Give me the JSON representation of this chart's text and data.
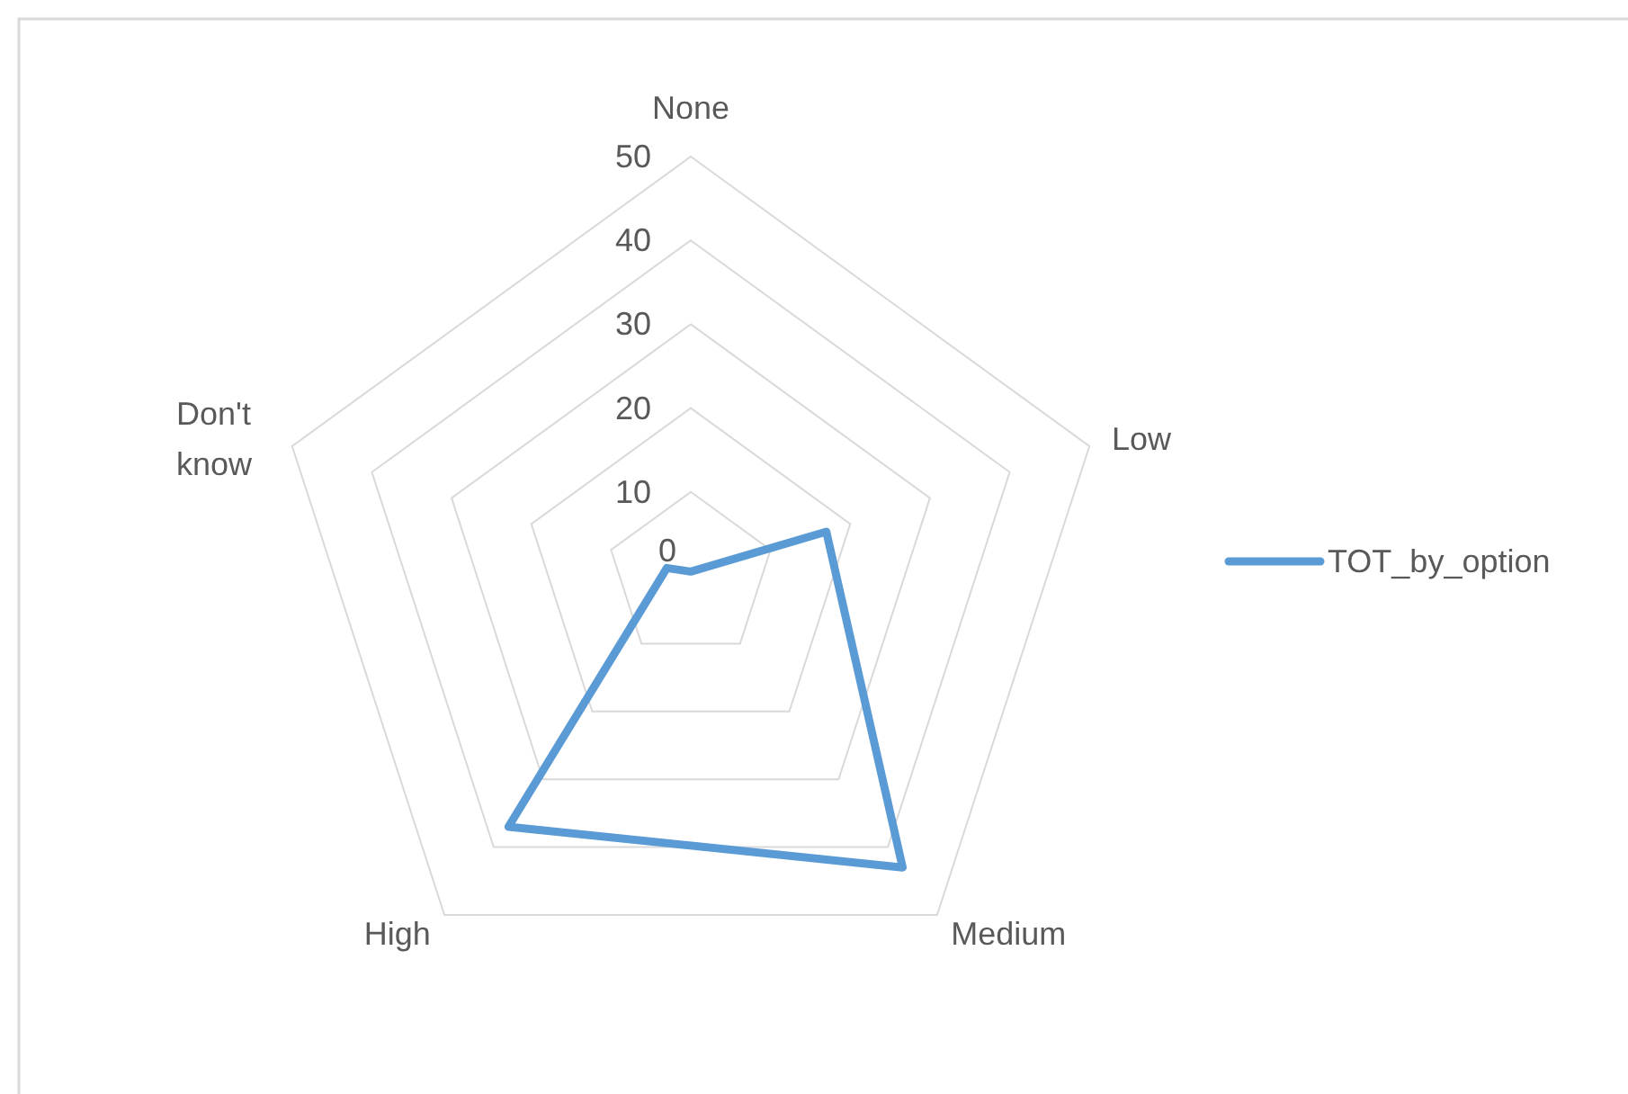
{
  "chart_data": {
    "type": "radar",
    "categories": [
      "None",
      "Low",
      "Medium",
      "High",
      "Don't know"
    ],
    "series": [
      {
        "name": "TOT_by_option",
        "color": "#5b9bd5",
        "values": [
          0.5,
          17,
          43,
          37,
          3
        ]
      }
    ],
    "ylim": [
      0,
      50
    ],
    "yticks": [
      0,
      10,
      20,
      30,
      40,
      50
    ],
    "grid": true,
    "legend": "right"
  }
}
